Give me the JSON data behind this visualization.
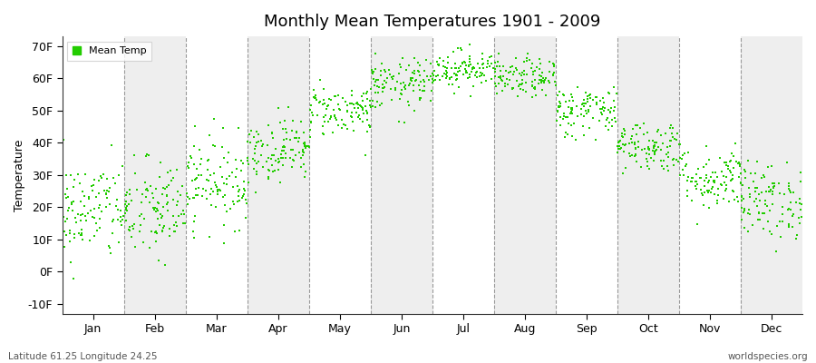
{
  "title": "Monthly Mean Temperatures 1901 - 2009",
  "ylabel": "Temperature",
  "legend_label": "Mean Temp",
  "bottom_left": "Latitude 61.25 Longitude 24.25",
  "bottom_right": "worldspecies.org",
  "dot_color": "#22cc00",
  "background_color": "#ffffff",
  "band_color": "#eeeeee",
  "ylim": [
    -13,
    73
  ],
  "yticks": [
    -10,
    0,
    10,
    20,
    30,
    40,
    50,
    60,
    70
  ],
  "ytick_labels": [
    "-10F",
    "0F",
    "10F",
    "20F",
    "30F",
    "40F",
    "50F",
    "60F",
    "70F"
  ],
  "months": [
    "Jan",
    "Feb",
    "Mar",
    "Apr",
    "May",
    "Jun",
    "Jul",
    "Aug",
    "Sep",
    "Oct",
    "Nov",
    "Dec"
  ],
  "n_years": 109,
  "monthly_means_F": [
    19,
    19,
    28,
    38,
    50,
    58,
    63,
    60,
    50,
    39,
    29,
    22
  ],
  "monthly_stds_F": [
    8,
    8,
    7,
    5,
    4,
    4,
    3,
    3,
    4,
    4,
    5,
    6
  ],
  "shaded_months": [
    1,
    3,
    5,
    7,
    9,
    11
  ],
  "seed": 42
}
